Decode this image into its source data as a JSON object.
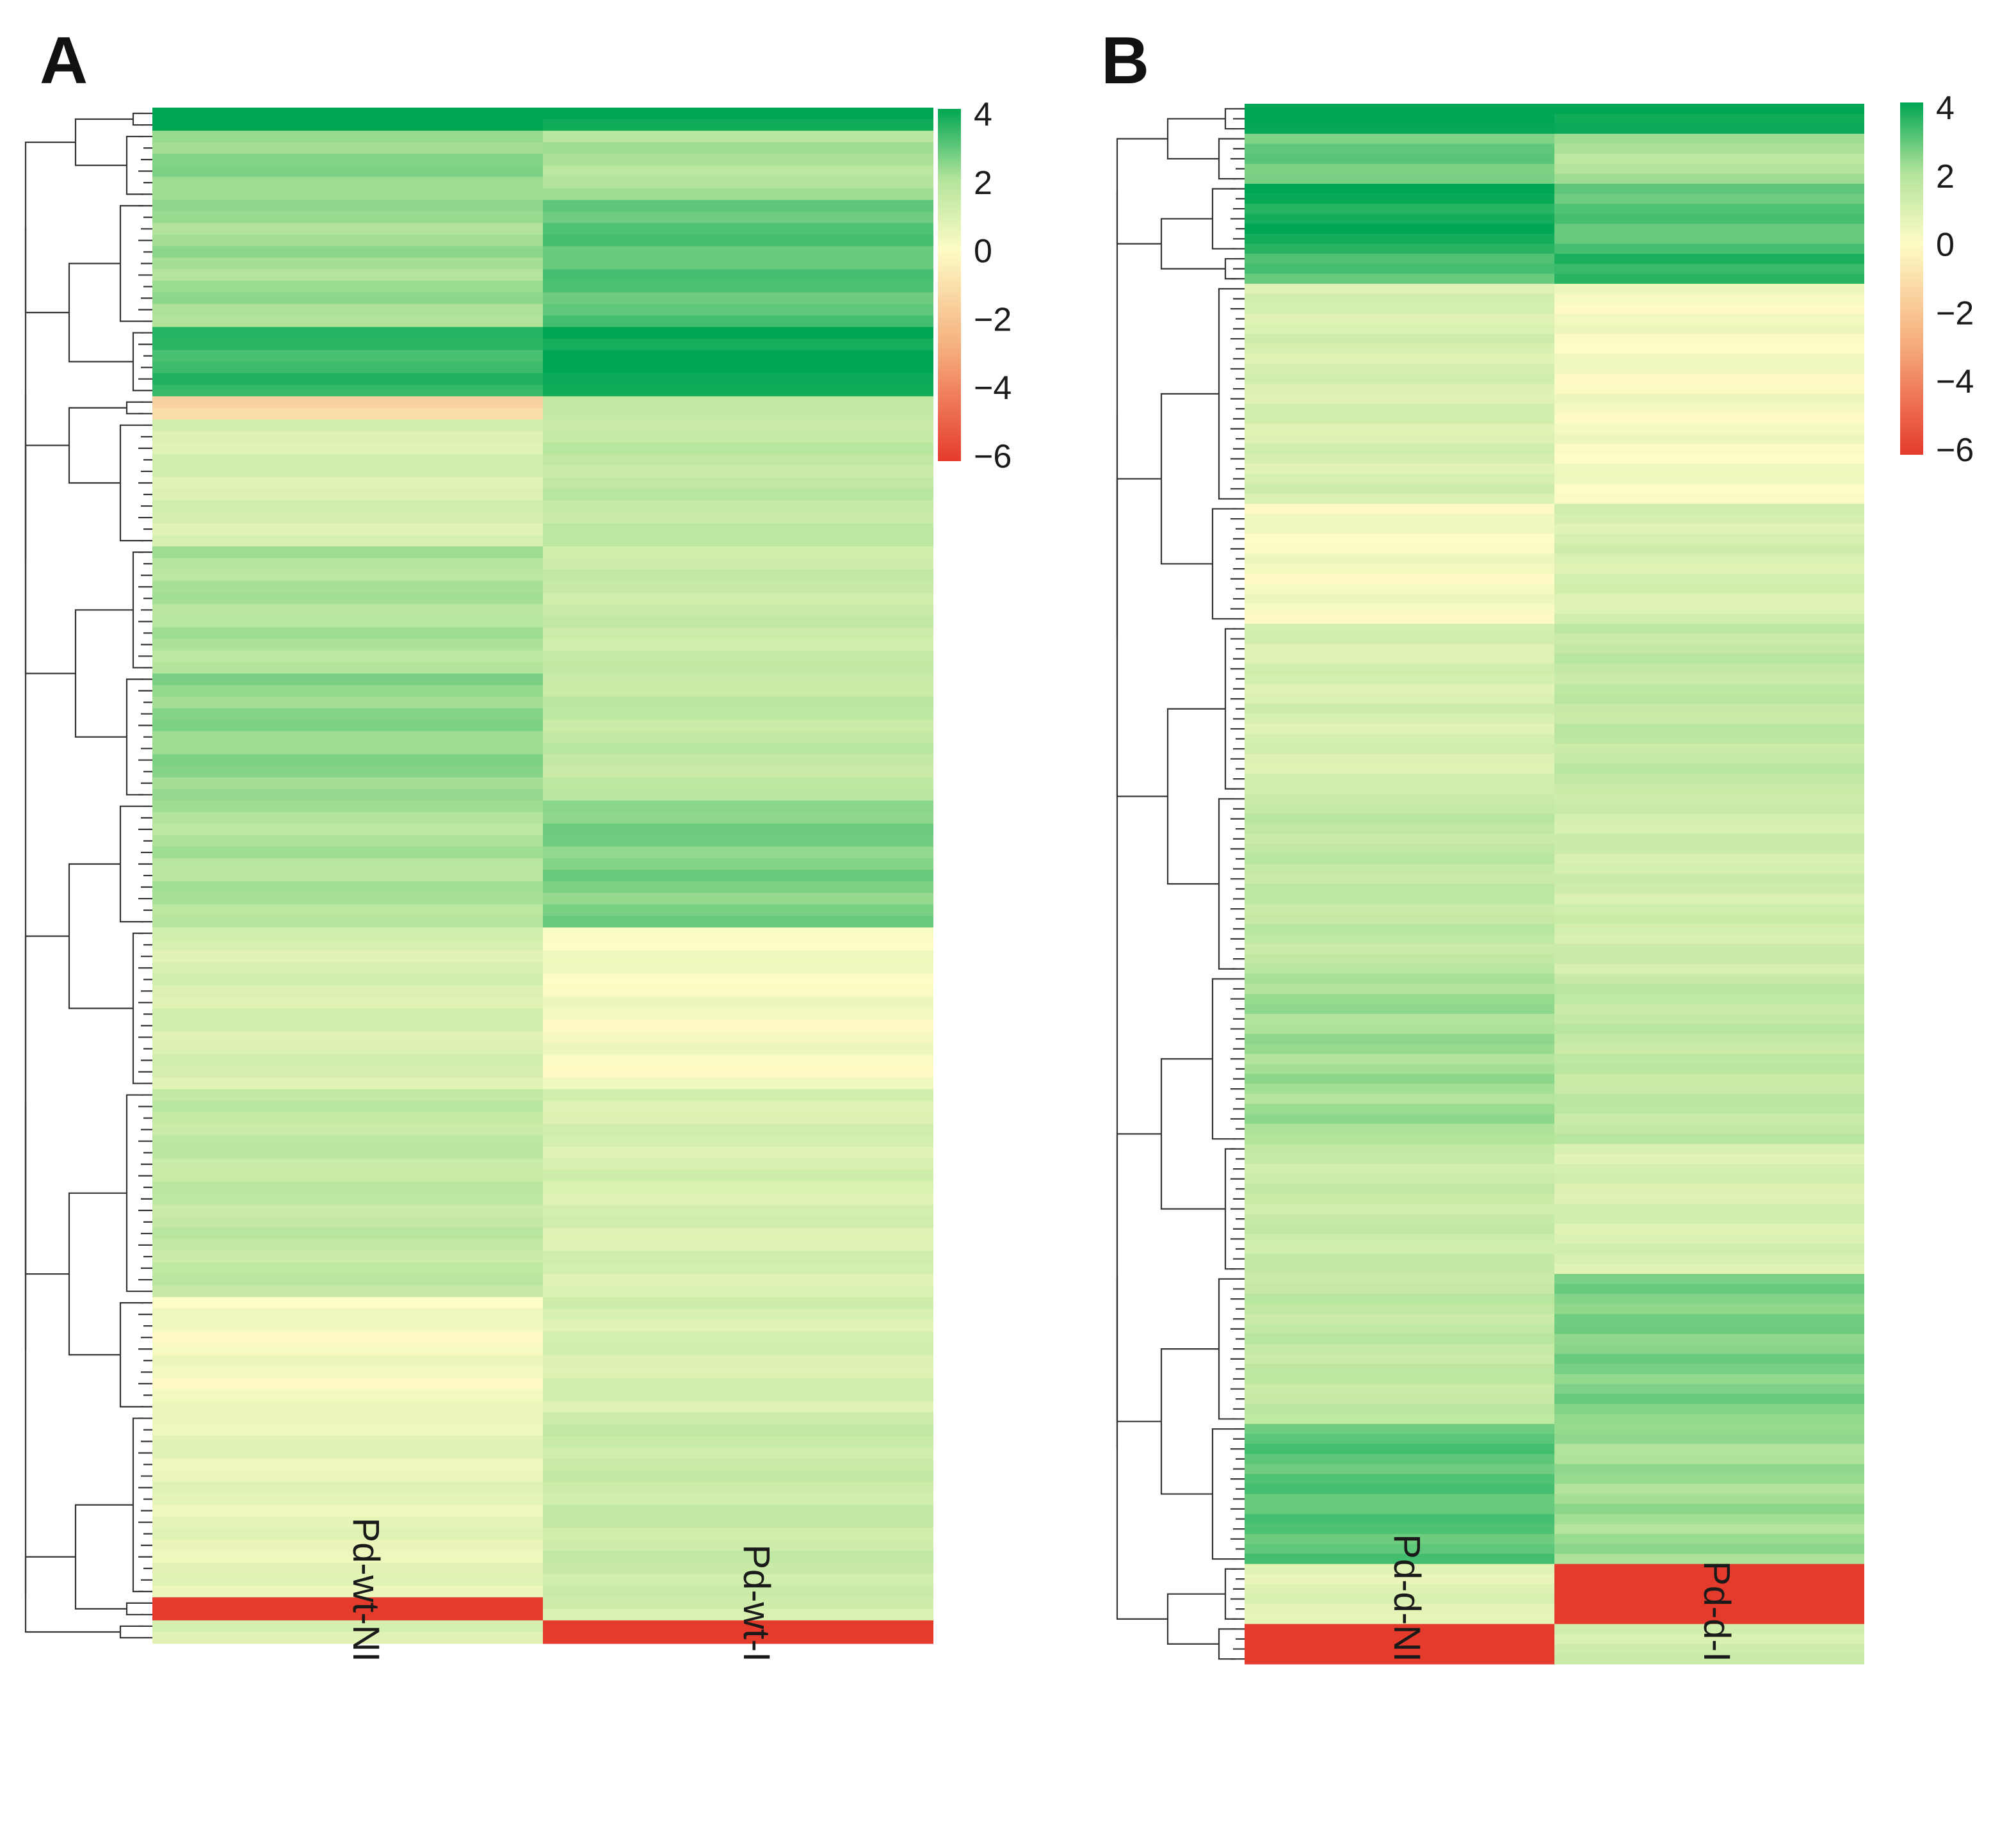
{
  "chart_data": [
    {
      "type": "heatmap",
      "panel": "A",
      "columns": [
        "Pd-wt-NI",
        "Pd-wt-I"
      ],
      "colorbar": {
        "min": -6,
        "max": 4,
        "ticks": [
          "4",
          "2",
          "0",
          "−2",
          "−4",
          "−6"
        ]
      },
      "clusters": [
        {
          "rows": 2,
          "values": [
            4.0,
            4.0
          ]
        },
        {
          "rows": 6,
          "values": [
            2.4,
            2.0
          ]
        },
        {
          "rows": 11,
          "values": [
            2.2,
            3.0
          ]
        },
        {
          "rows": 6,
          "values": [
            3.4,
            4.0
          ]
        },
        {
          "rows": 2,
          "values": [
            -1.2,
            1.4
          ]
        },
        {
          "rows": 11,
          "values": [
            1.0,
            1.6
          ]
        },
        {
          "rows": 11,
          "values": [
            2.0,
            1.4
          ]
        },
        {
          "rows": 11,
          "values": [
            2.4,
            1.6
          ]
        },
        {
          "rows": 11,
          "values": [
            2.0,
            2.6
          ]
        },
        {
          "rows": 14,
          "values": [
            1.0,
            0.2
          ]
        },
        {
          "rows": 18,
          "values": [
            1.6,
            1.0
          ]
        },
        {
          "rows": 10,
          "values": [
            0.2,
            1.0
          ]
        },
        {
          "rows": 16,
          "values": [
            0.6,
            1.4
          ]
        },
        {
          "rows": 2,
          "values": [
            -6.0,
            1.0
          ]
        },
        {
          "rows": 2,
          "values": [
            1.0,
            -6.0
          ]
        }
      ]
    },
    {
      "type": "heatmap",
      "panel": "B",
      "columns": [
        "Pd-d-NI",
        "Pd-d-I"
      ],
      "colorbar": {
        "min": -6,
        "max": 4,
        "ticks": [
          "4",
          "2",
          "0",
          "−2",
          "−4",
          "−6"
        ]
      },
      "clusters": [
        {
          "rows": 3,
          "values": [
            4.0,
            4.0
          ]
        },
        {
          "rows": 5,
          "values": [
            2.8,
            2.0
          ]
        },
        {
          "rows": 7,
          "values": [
            3.8,
            3.0
          ]
        },
        {
          "rows": 3,
          "values": [
            3.0,
            3.6
          ]
        },
        {
          "rows": 22,
          "values": [
            1.0,
            0.2
          ]
        },
        {
          "rows": 12,
          "values": [
            0.2,
            1.0
          ]
        },
        {
          "rows": 17,
          "values": [
            1.0,
            1.6
          ]
        },
        {
          "rows": 18,
          "values": [
            1.6,
            1.2
          ]
        },
        {
          "rows": 17,
          "values": [
            2.2,
            1.6
          ]
        },
        {
          "rows": 13,
          "values": [
            1.4,
            1.0
          ]
        },
        {
          "rows": 15,
          "values": [
            1.6,
            2.6
          ]
        },
        {
          "rows": 14,
          "values": [
            3.0,
            2.2
          ]
        },
        {
          "rows": 6,
          "values": [
            0.8,
            -6.0
          ]
        },
        {
          "rows": 4,
          "values": [
            -6.0,
            1.2
          ]
        }
      ]
    }
  ]
}
